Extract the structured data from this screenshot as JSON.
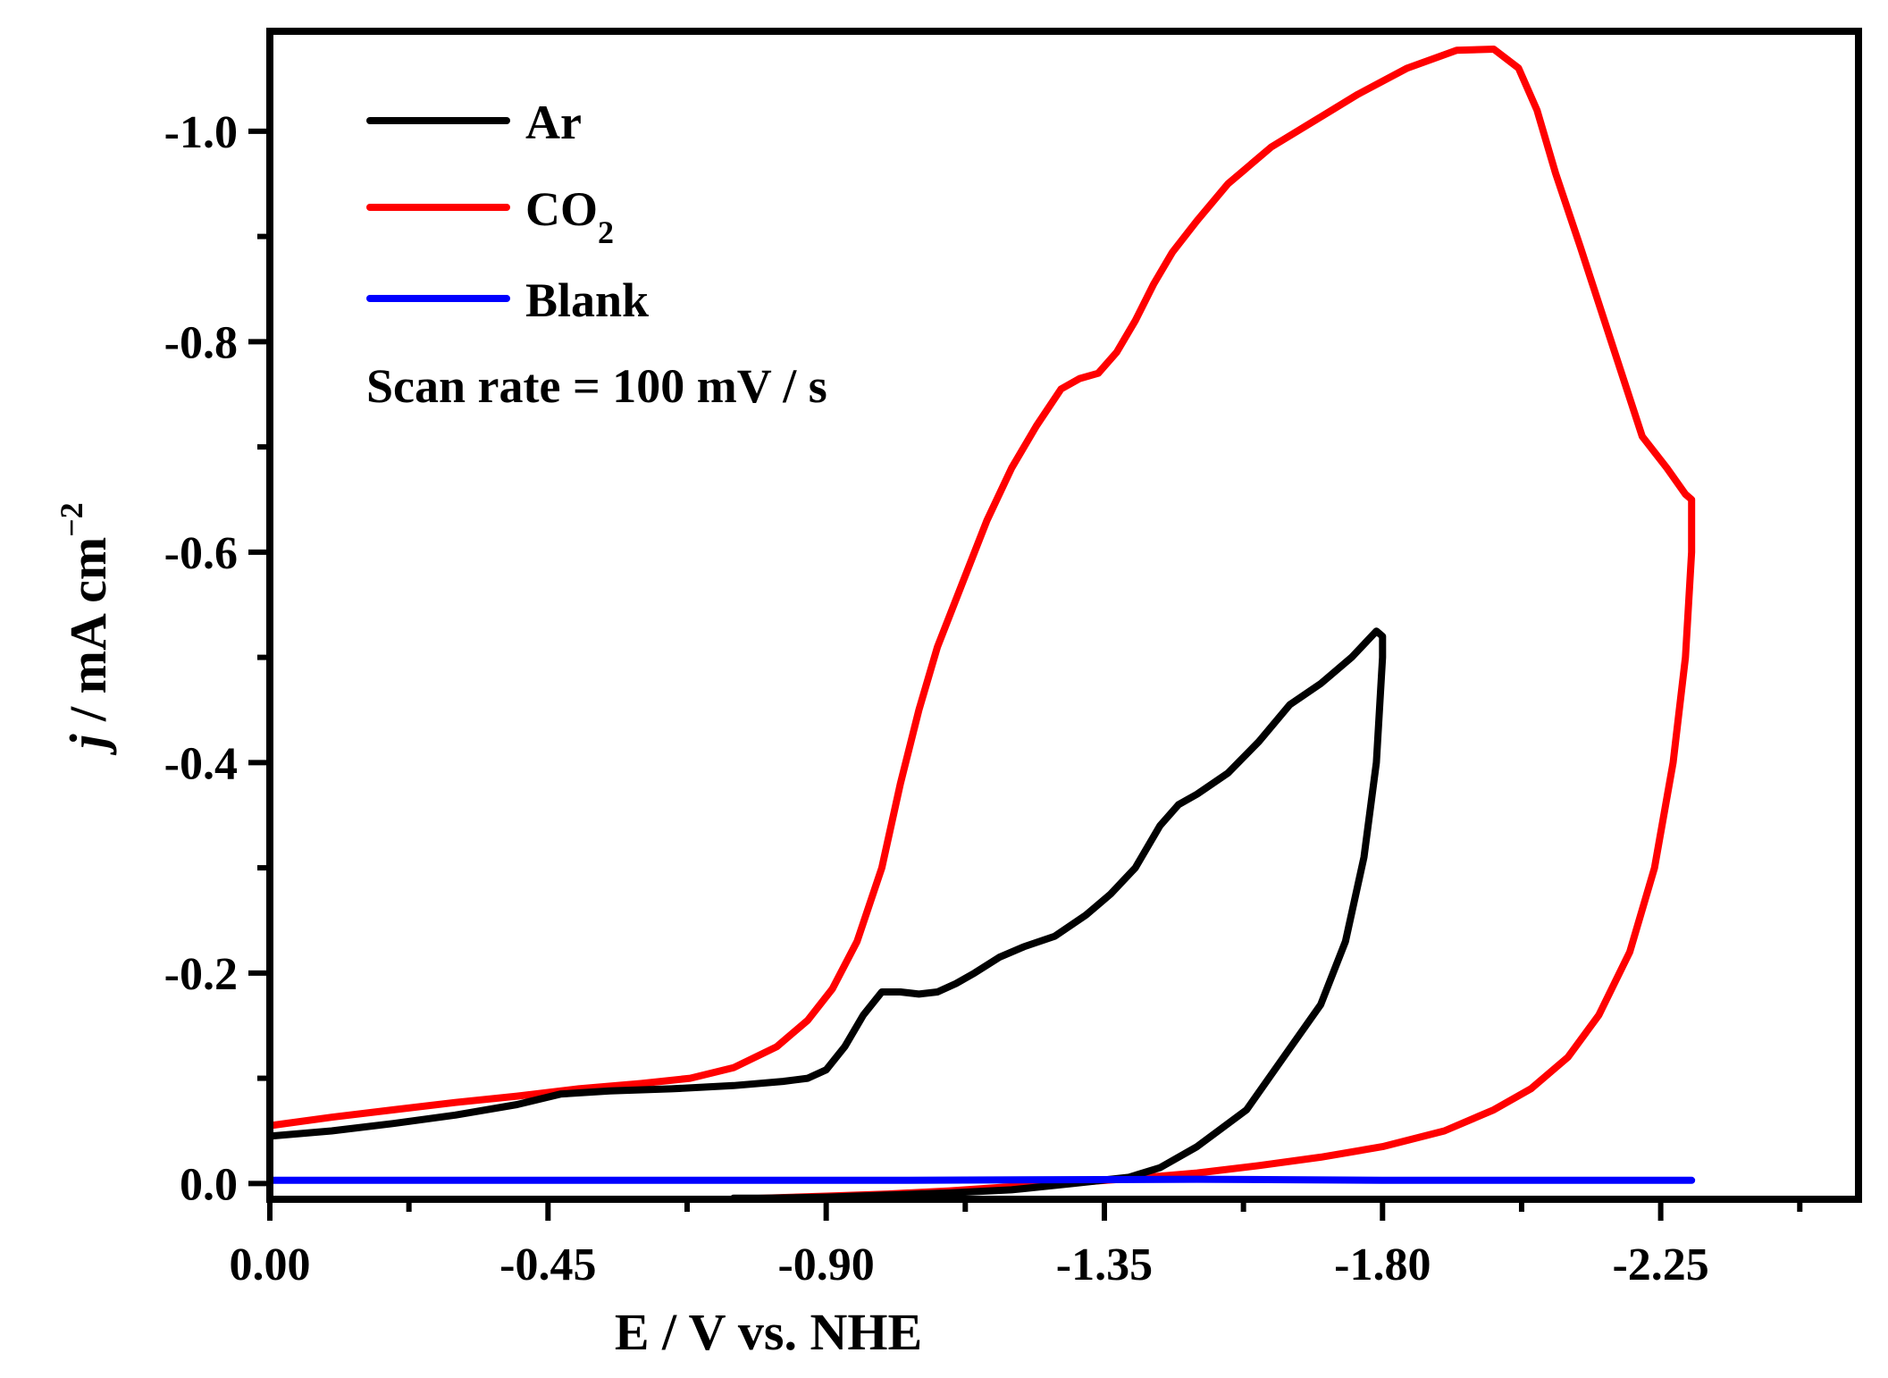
{
  "chart_data": {
    "type": "line",
    "title": "",
    "xlabel": "E / V vs. NHE",
    "ylabel_italic": "j",
    "ylabel_rest": " / mA cm",
    "ylabel_superscript": "−2",
    "xlim": [
      0.0,
      -2.57
    ],
    "ylim": [
      0.015,
      -1.095
    ],
    "x_ticks": [
      0.0,
      -0.45,
      -0.9,
      -1.35,
      -1.8,
      -2.25
    ],
    "x_tick_labels": [
      "0.00",
      "-0.45",
      "-0.90",
      "-1.35",
      "-1.80",
      "-2.25"
    ],
    "y_ticks": [
      0.0,
      -0.2,
      -0.4,
      -0.6,
      -0.8,
      -1.0
    ],
    "y_tick_labels": [
      "0.0",
      "-0.2",
      "-0.4",
      "-0.6",
      "-0.8",
      "-1.0"
    ],
    "grid": false,
    "legend_position": "top-left",
    "annotation": "Scan rate = 100 mV / s",
    "series": [
      {
        "name": "Ar",
        "label_main": "Ar",
        "label_sub": "",
        "color": "#000000",
        "x": [
          0.0,
          -0.1,
          -0.2,
          -0.3,
          -0.4,
          -0.47,
          -0.55,
          -0.65,
          -0.75,
          -0.83,
          -0.87,
          -0.9,
          -0.93,
          -0.96,
          -0.99,
          -1.02,
          -1.05,
          -1.08,
          -1.11,
          -1.14,
          -1.18,
          -1.22,
          -1.27,
          -1.32,
          -1.36,
          -1.4,
          -1.44,
          -1.47,
          -1.5,
          -1.55,
          -1.6,
          -1.65,
          -1.7,
          -1.75,
          -1.79,
          -1.8,
          -1.8,
          -1.79,
          -1.77,
          -1.74,
          -1.7,
          -1.64,
          -1.58,
          -1.5,
          -1.44,
          -1.39,
          -1.36,
          -1.33,
          -1.3,
          -1.2,
          -1.1,
          -1.0,
          -0.9,
          -0.8,
          -0.75
        ],
        "y": [
          -0.045,
          -0.05,
          -0.057,
          -0.065,
          -0.075,
          -0.085,
          -0.088,
          -0.09,
          -0.093,
          -0.097,
          -0.1,
          -0.108,
          -0.13,
          -0.16,
          -0.182,
          -0.182,
          -0.18,
          -0.182,
          -0.19,
          -0.2,
          -0.215,
          -0.225,
          -0.235,
          -0.255,
          -0.275,
          -0.3,
          -0.34,
          -0.36,
          -0.37,
          -0.39,
          -0.42,
          -0.455,
          -0.475,
          -0.5,
          -0.525,
          -0.52,
          -0.5,
          -0.4,
          -0.31,
          -0.23,
          -0.17,
          -0.12,
          -0.07,
          -0.035,
          -0.015,
          -0.006,
          -0.004,
          -0.002,
          0.0,
          0.006,
          0.009,
          0.011,
          0.013,
          0.014,
          0.014
        ]
      },
      {
        "name": "CO2",
        "label_main": "CO",
        "label_sub": "2",
        "color": "#ff0000",
        "x": [
          0.0,
          -0.1,
          -0.2,
          -0.3,
          -0.4,
          -0.5,
          -0.6,
          -0.68,
          -0.75,
          -0.82,
          -0.87,
          -0.91,
          -0.95,
          -0.99,
          -1.02,
          -1.05,
          -1.08,
          -1.12,
          -1.16,
          -1.2,
          -1.24,
          -1.28,
          -1.31,
          -1.34,
          -1.37,
          -1.4,
          -1.43,
          -1.46,
          -1.5,
          -1.55,
          -1.62,
          -1.69,
          -1.76,
          -1.84,
          -1.92,
          -1.98,
          -2.02,
          -2.05,
          -2.08,
          -2.12,
          -2.17,
          -2.22,
          -2.26,
          -2.29,
          -2.3,
          -2.3,
          -2.29,
          -2.27,
          -2.24,
          -2.2,
          -2.15,
          -2.1,
          -2.04,
          -1.98,
          -1.9,
          -1.8,
          -1.7,
          -1.6,
          -1.5,
          -1.4,
          -1.3,
          -1.2,
          -1.1,
          -1.0,
          -0.9,
          -0.8,
          -0.75
        ],
        "y": [
          -0.055,
          -0.063,
          -0.07,
          -0.077,
          -0.083,
          -0.09,
          -0.095,
          -0.1,
          -0.11,
          -0.13,
          -0.155,
          -0.185,
          -0.23,
          -0.3,
          -0.38,
          -0.45,
          -0.51,
          -0.57,
          -0.63,
          -0.68,
          -0.72,
          -0.755,
          -0.765,
          -0.77,
          -0.79,
          -0.82,
          -0.855,
          -0.885,
          -0.915,
          -0.95,
          -0.985,
          -1.01,
          -1.035,
          -1.06,
          -1.077,
          -1.078,
          -1.06,
          -1.02,
          -0.96,
          -0.89,
          -0.8,
          -0.71,
          -0.68,
          -0.655,
          -0.65,
          -0.6,
          -0.5,
          -0.4,
          -0.3,
          -0.22,
          -0.16,
          -0.12,
          -0.09,
          -0.07,
          -0.05,
          -0.035,
          -0.025,
          -0.017,
          -0.01,
          -0.005,
          -0.001,
          0.003,
          0.007,
          0.01,
          0.012,
          0.014,
          0.015
        ]
      },
      {
        "name": "Blank",
        "label_main": "Blank",
        "label_sub": "",
        "color": "#0000ff",
        "x": [
          0.0,
          -0.5,
          -1.0,
          -1.5,
          -1.8,
          -2.0,
          -2.3
        ],
        "y": [
          -0.003,
          -0.003,
          -0.003,
          -0.004,
          -0.003,
          -0.003,
          -0.003
        ]
      }
    ]
  }
}
